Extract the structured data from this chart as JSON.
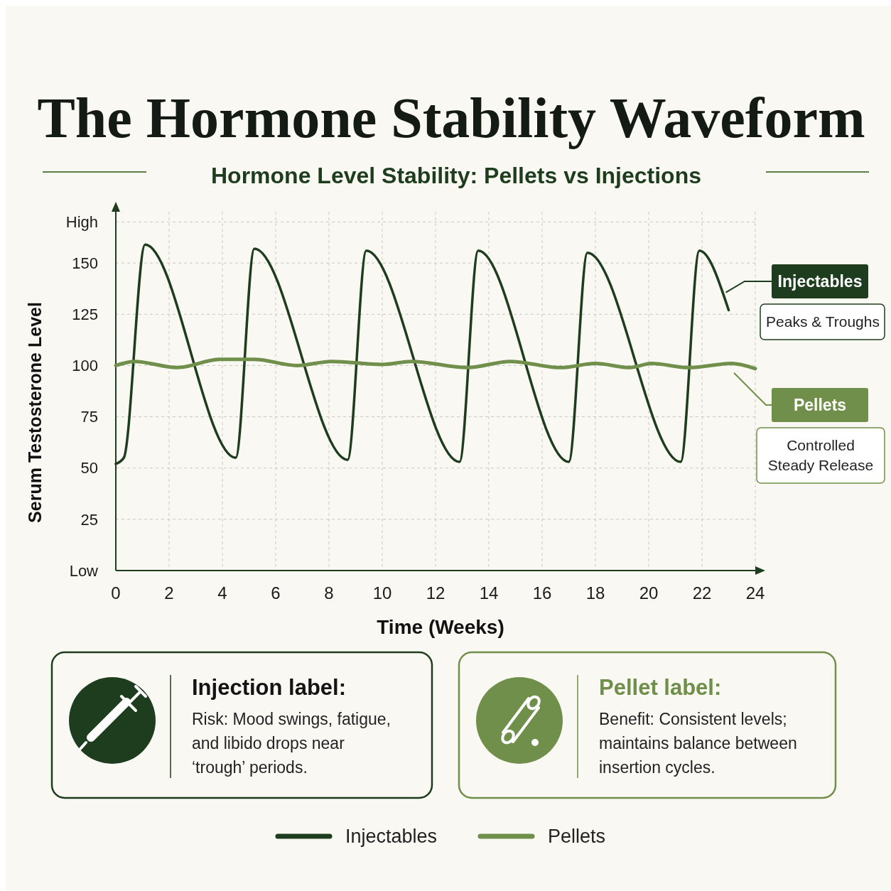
{
  "chart_data": {
    "type": "line",
    "title": "The Hormone Stability Waveform",
    "subtitle": "Hormone Level Stability: Pellets vs Injections",
    "xlabel": "Time (Weeks)",
    "ylabel": "Serum Testosterone Level",
    "xlim": [
      0,
      24
    ],
    "xticks": [
      0,
      2,
      4,
      6,
      8,
      10,
      12,
      14,
      16,
      18,
      20,
      22,
      24
    ],
    "ylim": [
      0,
      175
    ],
    "yticks": [
      {
        "value": 0,
        "label": "Low"
      },
      25,
      50,
      75,
      100,
      125,
      150,
      {
        "value": 170,
        "label": "High"
      }
    ],
    "grid": true,
    "legend": "bottom",
    "marker": "none",
    "line_style": "solid",
    "series": [
      {
        "name": "Injectables",
        "color": "#1e3d1e",
        "x": [
          0,
          0.3,
          1.1,
          4.5,
          5.2,
          8.7,
          9.4,
          12.9,
          13.6,
          17.0,
          17.7,
          21.2,
          21.9,
          23.0
        ],
        "values": [
          52,
          55,
          159,
          55,
          157,
          54,
          156,
          53,
          156,
          53,
          155,
          53,
          156,
          127
        ]
      },
      {
        "name": "Pellets",
        "color": "#6f8f4a",
        "x": [
          0,
          0.7,
          2.3,
          3.9,
          5.2,
          6.8,
          8.1,
          10.0,
          11.1,
          13.2,
          14.8,
          16.7,
          18.0,
          19.3,
          20.1,
          21.5,
          23.1,
          24
        ],
        "values": [
          100,
          102,
          99,
          103,
          103,
          100,
          102,
          100.5,
          102,
          99,
          102,
          99,
          101,
          99,
          101,
          99,
          101,
          98.5
        ]
      }
    ],
    "annotations": [
      "Peaks & Troughs",
      "Controlled Steady Release",
      "Injection label:",
      "Risk: Mood swings, fatigue, and libido drops near ‘trough’ periods.",
      "Pellet label:",
      "Benefit: Consistent levels; maintains balance between insertion cycles."
    ]
  }
}
